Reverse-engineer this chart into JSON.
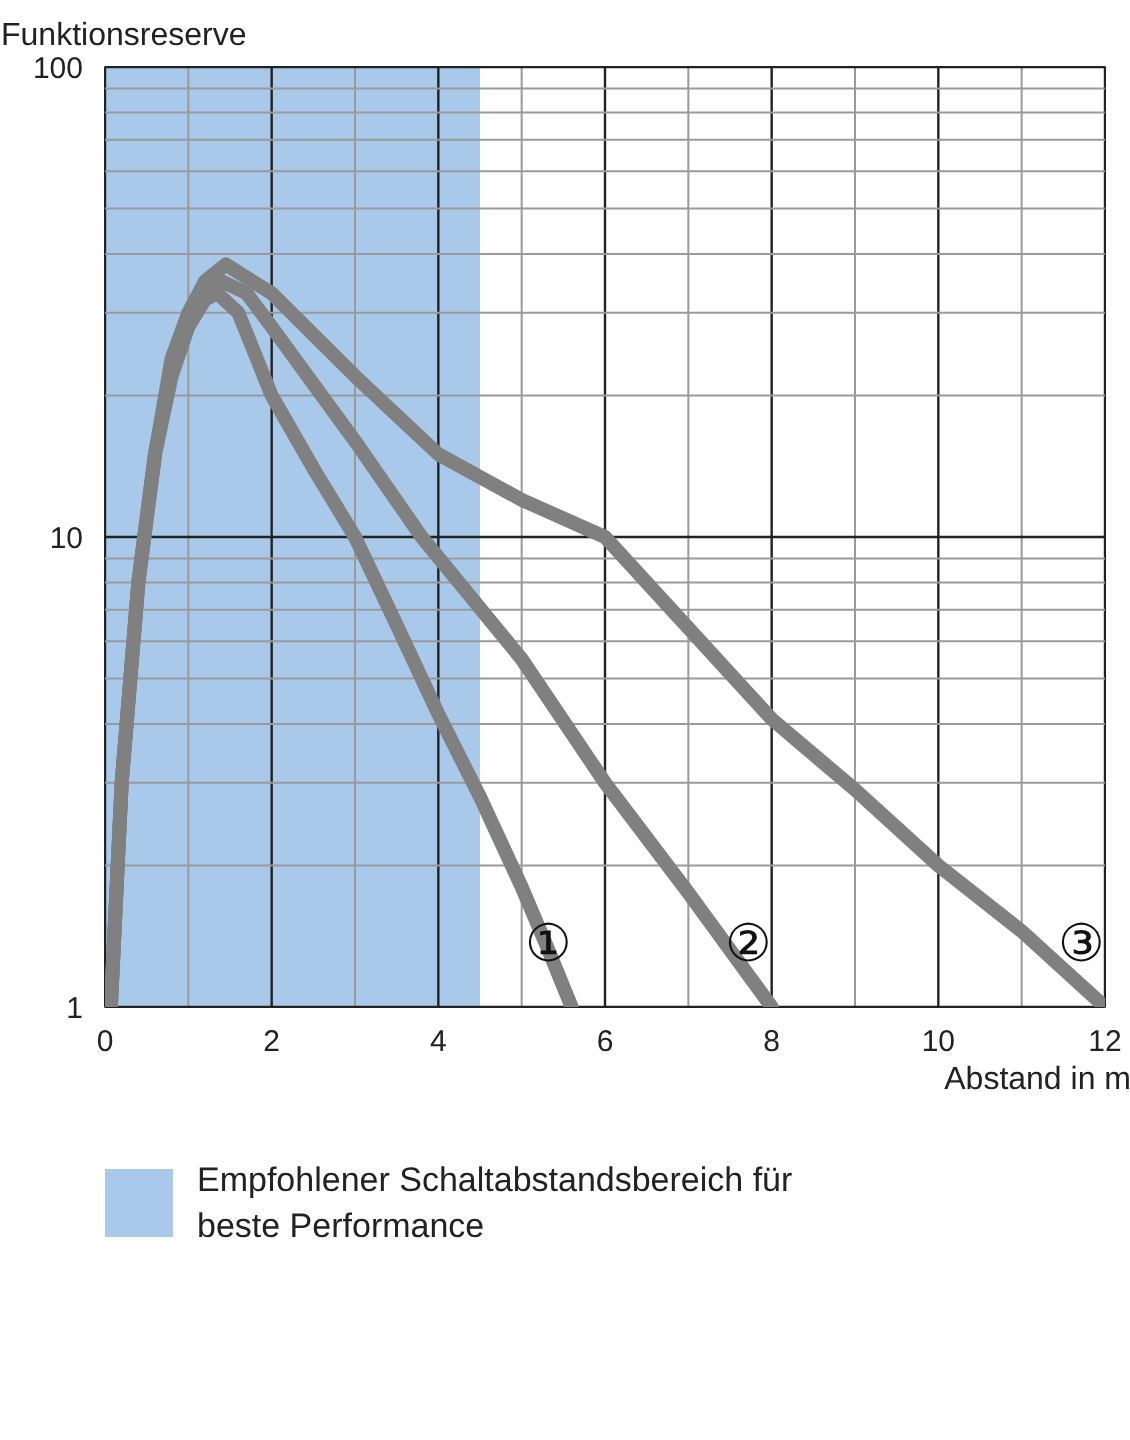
{
  "chart_data": {
    "type": "line",
    "xlabel": "Abstand in m",
    "ylabel": "Funktionsreserve",
    "log": "y",
    "xlim": [
      0,
      12
    ],
    "ylim": [
      1,
      100
    ],
    "xticks": [
      0,
      {
        "value": 1,
        "label": null
      },
      2,
      {
        "value": 3,
        "label": null
      },
      4,
      {
        "value": 5,
        "label": null
      },
      6,
      {
        "value": 7,
        "label": null
      },
      8,
      {
        "value": 9,
        "label": null
      },
      10,
      {
        "value": 11,
        "label": null
      },
      12
    ],
    "yticks": [
      1,
      {
        "value": 2,
        "label": null
      },
      {
        "value": 3,
        "label": null
      },
      {
        "value": 4,
        "label": null
      },
      {
        "value": 5,
        "label": null
      },
      {
        "value": 6,
        "label": null
      },
      {
        "value": 7,
        "label": null
      },
      {
        "value": 8,
        "label": null
      },
      {
        "value": 9,
        "label": null
      },
      10,
      {
        "value": 20,
        "label": null
      },
      {
        "value": 30,
        "label": null
      },
      {
        "value": 40,
        "label": null
      },
      {
        "value": 50,
        "label": null
      },
      {
        "value": 60,
        "label": null
      },
      {
        "value": 70,
        "label": null
      },
      {
        "value": 80,
        "label": null
      },
      {
        "value": 90,
        "label": null
      },
      100
    ],
    "grid": true,
    "legend": "bottom",
    "series": [
      {
        "name": "①",
        "color": "#808080",
        "x": [
          0.07,
          0.2,
          0.4,
          0.6,
          0.8,
          1.0,
          1.2,
          1.35,
          1.6,
          2,
          2.5,
          3,
          3.5,
          4,
          4.5,
          5,
          5.3,
          5.6
        ],
        "values": [
          1,
          3,
          8,
          15,
          22,
          28,
          32,
          33,
          30,
          20,
          14,
          10,
          6.5,
          4.2,
          2.8,
          1.8,
          1.35,
          1
        ]
      },
      {
        "name": "②",
        "color": "#808080",
        "x": [
          0.07,
          0.2,
          0.4,
          0.6,
          0.8,
          1.0,
          1.2,
          1.4,
          1.7,
          2,
          3,
          3.8,
          5,
          6,
          7,
          8
        ],
        "values": [
          1,
          3,
          8,
          15,
          23,
          29,
          33,
          35,
          33,
          28,
          16,
          10,
          5.5,
          3,
          1.75,
          1
        ]
      },
      {
        "name": "③",
        "color": "#808080",
        "x": [
          0.07,
          0.2,
          0.4,
          0.6,
          0.8,
          1.0,
          1.2,
          1.45,
          2,
          3,
          4,
          5,
          6,
          7,
          8,
          9,
          10,
          11,
          12
        ],
        "values": [
          1,
          3,
          8,
          15,
          24,
          30,
          35,
          38,
          33,
          22,
          15,
          12,
          10,
          6.4,
          4.1,
          2.9,
          2.0,
          1.45,
          1
        ]
      }
    ],
    "bands": [
      {
        "axis": "x",
        "from": 0,
        "to": 4.5,
        "label": "Empfohlener Schaltabstandsbereich für beste Performance",
        "color": "#a9c9ea"
      }
    ]
  }
}
